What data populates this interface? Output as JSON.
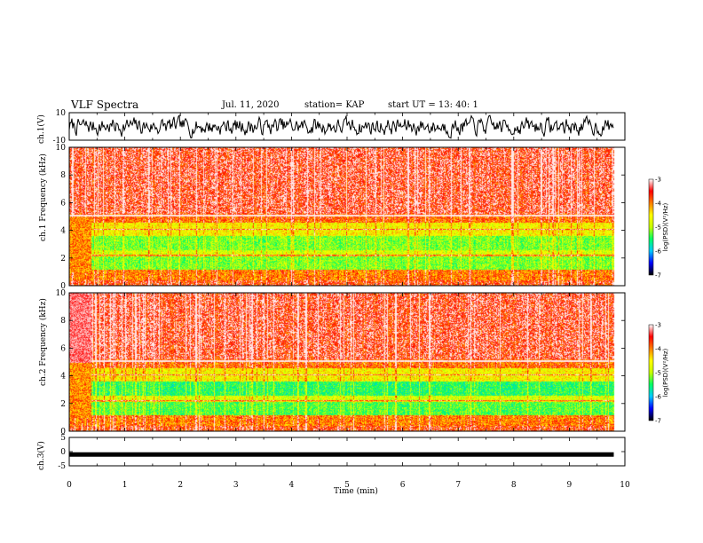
{
  "header": {
    "title": "VLF Spectra",
    "date": "Jul. 11, 2020",
    "station": "station= KAP",
    "start_ut": "start UT = 13: 40: 1"
  },
  "chart_data": [
    {
      "type": "line",
      "panel": "ch1-waveform",
      "ylabel": "ch.1(V)",
      "ylim": [
        -10,
        10
      ],
      "yticks": [
        "10",
        "-10"
      ],
      "xlim": [
        0,
        10
      ],
      "x_extent": [
        0,
        9.8
      ]
    },
    {
      "type": "heatmap",
      "panel": "ch1-spectrogram",
      "ylabel": "ch.1 Frequency (kHz)",
      "ylim": [
        0,
        10
      ],
      "yticks": [
        "0",
        "2",
        "4",
        "6",
        "8",
        "10"
      ],
      "xlim": [
        0,
        10
      ],
      "x_extent": [
        0,
        9.8
      ],
      "colorbar": {
        "label": "log(PSD)(V²/Hz)",
        "range": [
          -7,
          -3
        ],
        "ticks": [
          "-3",
          "-4",
          "-5",
          "-6",
          "-7"
        ]
      }
    },
    {
      "type": "heatmap",
      "panel": "ch2-spectrogram",
      "ylabel": "ch.2 Frequency (kHz)",
      "ylim": [
        0,
        10
      ],
      "yticks": [
        "0",
        "2",
        "4",
        "6",
        "8",
        "10"
      ],
      "xlim": [
        0,
        10
      ],
      "x_extent": [
        0,
        9.8
      ],
      "colorbar": {
        "label": "log(PSD)(V²/Hz)",
        "range": [
          -7,
          -3
        ],
        "ticks": [
          "-3",
          "-4",
          "-5",
          "-6",
          "-7"
        ]
      }
    },
    {
      "type": "line",
      "panel": "ch3-waveform",
      "ylabel": "ch.3(V)",
      "ylim": [
        -5,
        5
      ],
      "yticks": [
        "5",
        "0",
        "-5"
      ],
      "xlim": [
        0,
        10
      ],
      "x_extent": [
        0,
        9.8
      ],
      "series": [
        {
          "values_approx": -1
        }
      ]
    }
  ],
  "xaxis": {
    "label": "Time (min)",
    "ticks": [
      "0",
      "1",
      "2",
      "3",
      "4",
      "5",
      "6",
      "7",
      "8",
      "9",
      "10"
    ]
  },
  "colors": {
    "trace": "#000000",
    "scale": [
      "#000000",
      "#0000ff",
      "#00c8ff",
      "#00ff64",
      "#c8ff00",
      "#ffff00",
      "#ff8000",
      "#ff0000",
      "#ffffff"
    ]
  }
}
